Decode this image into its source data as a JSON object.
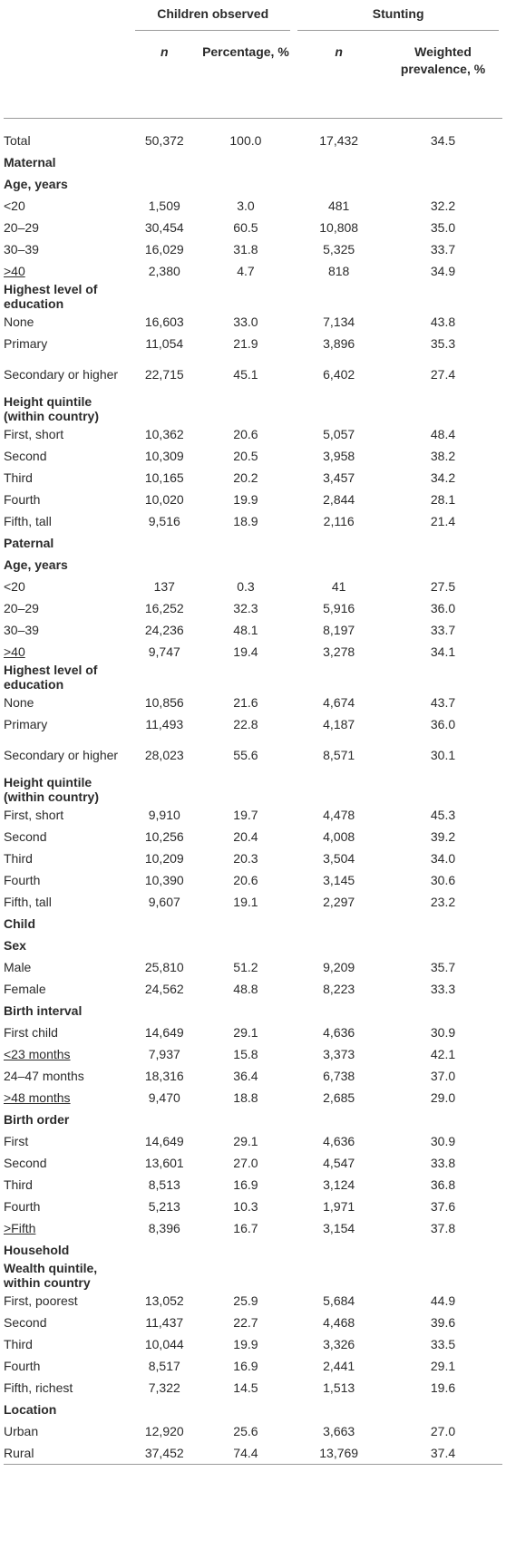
{
  "headers": {
    "group1": "Children observed",
    "group2": "Stunting",
    "n1": "n",
    "pct": "Percentage, %",
    "n2": "n",
    "prev": "Weighted prevalence, %"
  },
  "rows": [
    {
      "type": "data",
      "label": "Total",
      "n": "50,372",
      "pct": "100.0",
      "sn": "17,432",
      "prev": "34.5"
    },
    {
      "type": "section",
      "label": "Maternal"
    },
    {
      "type": "section",
      "label": "Age, years"
    },
    {
      "type": "data",
      "label": "<20",
      "n": "1,509",
      "pct": "3.0",
      "sn": "481",
      "prev": "32.2"
    },
    {
      "type": "data",
      "label": "20–29",
      "n": "30,454",
      "pct": "60.5",
      "sn": "10,808",
      "prev": "35.0"
    },
    {
      "type": "data",
      "label": "30–39",
      "n": "16,029",
      "pct": "31.8",
      "sn": "5,325",
      "prev": "33.7"
    },
    {
      "type": "data",
      "label": ">40",
      "n": "2,380",
      "pct": "4.7",
      "sn": "818",
      "prev": "34.9",
      "ge": true
    },
    {
      "type": "section",
      "label": "Highest level of education"
    },
    {
      "type": "data",
      "label": "None",
      "n": "16,603",
      "pct": "33.0",
      "sn": "7,134",
      "prev": "43.8"
    },
    {
      "type": "data",
      "label": "Primary",
      "n": "11,054",
      "pct": "21.9",
      "sn": "3,896",
      "prev": "35.3"
    },
    {
      "type": "data",
      "label": "Secondary or higher",
      "n": "22,715",
      "pct": "45.1",
      "sn": "6,402",
      "prev": "27.4",
      "tall": true
    },
    {
      "type": "section",
      "label": "Height quintile (within country)"
    },
    {
      "type": "data",
      "label": "First, short",
      "n": "10,362",
      "pct": "20.6",
      "sn": "5,057",
      "prev": "48.4"
    },
    {
      "type": "data",
      "label": "Second",
      "n": "10,309",
      "pct": "20.5",
      "sn": "3,958",
      "prev": "38.2"
    },
    {
      "type": "data",
      "label": "Third",
      "n": "10,165",
      "pct": "20.2",
      "sn": "3,457",
      "prev": "34.2"
    },
    {
      "type": "data",
      "label": "Fourth",
      "n": "10,020",
      "pct": "19.9",
      "sn": "2,844",
      "prev": "28.1"
    },
    {
      "type": "data",
      "label": "Fifth, tall",
      "n": "9,516",
      "pct": "18.9",
      "sn": "2,116",
      "prev": "21.4"
    },
    {
      "type": "section",
      "label": "Paternal"
    },
    {
      "type": "section",
      "label": "Age, years"
    },
    {
      "type": "data",
      "label": "<20",
      "n": "137",
      "pct": "0.3",
      "sn": "41",
      "prev": "27.5"
    },
    {
      "type": "data",
      "label": "20–29",
      "n": "16,252",
      "pct": "32.3",
      "sn": "5,916",
      "prev": "36.0"
    },
    {
      "type": "data",
      "label": "30–39",
      "n": "24,236",
      "pct": "48.1",
      "sn": "8,197",
      "prev": "33.7"
    },
    {
      "type": "data",
      "label": ">40",
      "n": "9,747",
      "pct": "19.4",
      "sn": "3,278",
      "prev": "34.1",
      "ge": true
    },
    {
      "type": "section",
      "label": "Highest level of education"
    },
    {
      "type": "data",
      "label": "None",
      "n": "10,856",
      "pct": "21.6",
      "sn": "4,674",
      "prev": "43.7"
    },
    {
      "type": "data",
      "label": "Primary",
      "n": "11,493",
      "pct": "22.8",
      "sn": "4,187",
      "prev": "36.0"
    },
    {
      "type": "data",
      "label": "Secondary or higher",
      "n": "28,023",
      "pct": "55.6",
      "sn": "8,571",
      "prev": "30.1",
      "tall": true
    },
    {
      "type": "section",
      "label": "Height quintile (within country)"
    },
    {
      "type": "data",
      "label": "First, short",
      "n": "9,910",
      "pct": "19.7",
      "sn": "4,478",
      "prev": "45.3"
    },
    {
      "type": "data",
      "label": "Second",
      "n": "10,256",
      "pct": "20.4",
      "sn": "4,008",
      "prev": "39.2"
    },
    {
      "type": "data",
      "label": "Third",
      "n": "10,209",
      "pct": "20.3",
      "sn": "3,504",
      "prev": "34.0"
    },
    {
      "type": "data",
      "label": "Fourth",
      "n": "10,390",
      "pct": "20.6",
      "sn": "3,145",
      "prev": "30.6"
    },
    {
      "type": "data",
      "label": "Fifth, tall",
      "n": "9,607",
      "pct": "19.1",
      "sn": "2,297",
      "prev": "23.2"
    },
    {
      "type": "section",
      "label": "Child"
    },
    {
      "type": "section",
      "label": "Sex"
    },
    {
      "type": "data",
      "label": "Male",
      "n": "25,810",
      "pct": "51.2",
      "sn": "9,209",
      "prev": "35.7"
    },
    {
      "type": "data",
      "label": "Female",
      "n": "24,562",
      "pct": "48.8",
      "sn": "8,223",
      "prev": "33.3"
    },
    {
      "type": "section",
      "label": "Birth interval"
    },
    {
      "type": "data",
      "label": "First child",
      "n": "14,649",
      "pct": "29.1",
      "sn": "4,636",
      "prev": "30.9"
    },
    {
      "type": "data",
      "label": "<23 months",
      "n": "7,937",
      "pct": "15.8",
      "sn": "3,373",
      "prev": "42.1",
      "ge": true
    },
    {
      "type": "data",
      "label": "24–47 months",
      "n": "18,316",
      "pct": "36.4",
      "sn": "6,738",
      "prev": "37.0"
    },
    {
      "type": "data",
      "label": ">48 months",
      "n": "9,470",
      "pct": "18.8",
      "sn": "2,685",
      "prev": "29.0",
      "ge": true
    },
    {
      "type": "section",
      "label": "Birth order"
    },
    {
      "type": "data",
      "label": "First",
      "n": "14,649",
      "pct": "29.1",
      "sn": "4,636",
      "prev": "30.9"
    },
    {
      "type": "data",
      "label": "Second",
      "n": "13,601",
      "pct": "27.0",
      "sn": "4,547",
      "prev": "33.8"
    },
    {
      "type": "data",
      "label": "Third",
      "n": "8,513",
      "pct": "16.9",
      "sn": "3,124",
      "prev": "36.8"
    },
    {
      "type": "data",
      "label": "Fourth",
      "n": "5,213",
      "pct": "10.3",
      "sn": "1,971",
      "prev": "37.6"
    },
    {
      "type": "data",
      "label": ">Fifth",
      "n": "8,396",
      "pct": "16.7",
      "sn": "3,154",
      "prev": "37.8",
      "ge": true
    },
    {
      "type": "section",
      "label": "Household"
    },
    {
      "type": "section",
      "label": "Wealth quintile, within country"
    },
    {
      "type": "data",
      "label": "First, poorest",
      "n": "13,052",
      "pct": "25.9",
      "sn": "5,684",
      "prev": "44.9"
    },
    {
      "type": "data",
      "label": "Second",
      "n": "11,437",
      "pct": "22.7",
      "sn": "4,468",
      "prev": "39.6"
    },
    {
      "type": "data",
      "label": "Third",
      "n": "10,044",
      "pct": "19.9",
      "sn": "3,326",
      "prev": "33.5"
    },
    {
      "type": "data",
      "label": "Fourth",
      "n": "8,517",
      "pct": "16.9",
      "sn": "2,441",
      "prev": "29.1"
    },
    {
      "type": "data",
      "label": "Fifth, richest",
      "n": "7,322",
      "pct": "14.5",
      "sn": "1,513",
      "prev": "19.6"
    },
    {
      "type": "section",
      "label": "Location"
    },
    {
      "type": "data",
      "label": "Urban",
      "n": "12,920",
      "pct": "25.6",
      "sn": "3,663",
      "prev": "27.0"
    },
    {
      "type": "data",
      "label": "Rural",
      "n": "37,452",
      "pct": "74.4",
      "sn": "13,769",
      "prev": "37.4"
    }
  ]
}
